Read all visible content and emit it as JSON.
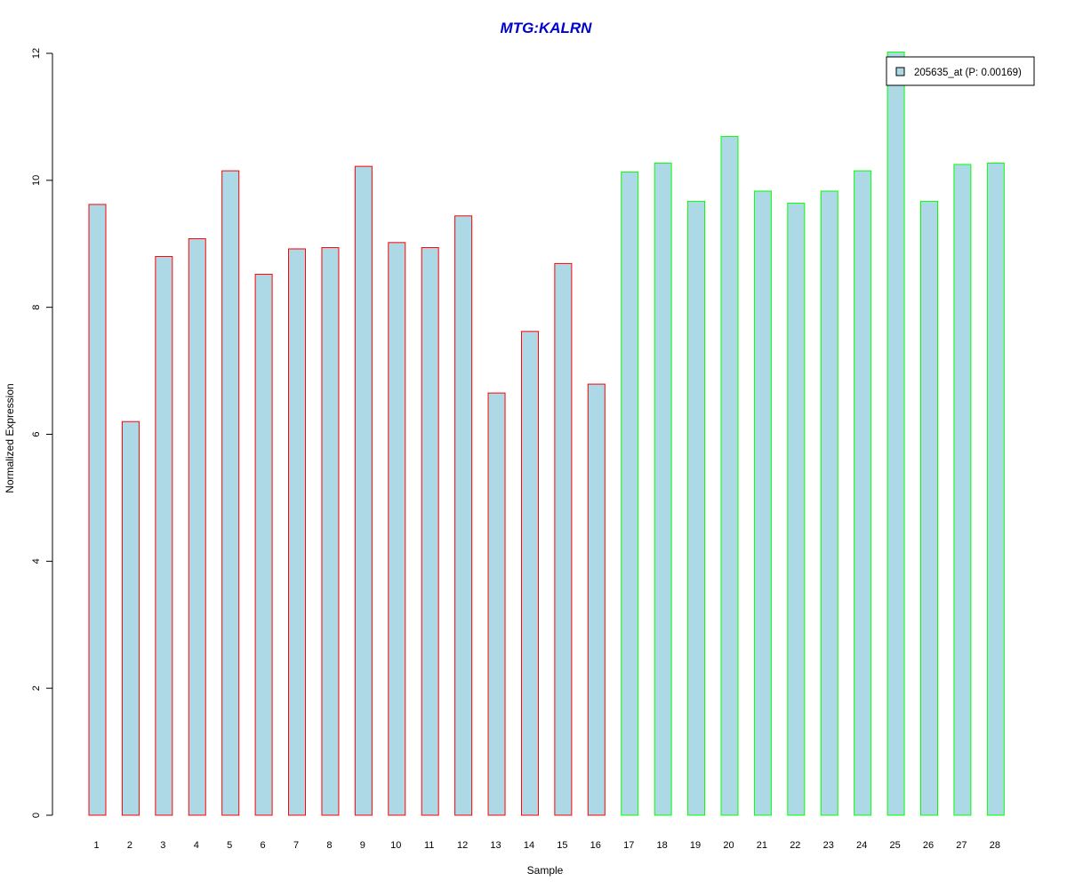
{
  "chart_data": {
    "type": "bar",
    "title": "MTG:KALRN",
    "xlabel": "Sample",
    "ylabel": "Normalized Expression",
    "ylim": [
      0,
      12
    ],
    "yticks": [
      0,
      2,
      4,
      6,
      8,
      10,
      12
    ],
    "grid": false,
    "legend": {
      "position": "top-right",
      "entries": [
        {
          "label": "205635_at (P: 0.00169)",
          "fill": "#add8e6"
        }
      ]
    },
    "categories": [
      "1",
      "2",
      "3",
      "4",
      "5",
      "6",
      "7",
      "8",
      "9",
      "10",
      "11",
      "12",
      "13",
      "14",
      "15",
      "16",
      "17",
      "18",
      "19",
      "20",
      "21",
      "22",
      "23",
      "24",
      "25",
      "26",
      "27",
      "28"
    ],
    "values": [
      9.62,
      6.2,
      8.8,
      9.08,
      10.15,
      8.52,
      8.92,
      8.94,
      10.22,
      9.02,
      8.94,
      9.44,
      6.65,
      7.62,
      8.69,
      6.79,
      10.13,
      10.27,
      9.67,
      10.69,
      9.83,
      9.64,
      9.83,
      10.15,
      12.02,
      9.67,
      10.25,
      10.27
    ],
    "groups": [
      1,
      1,
      1,
      1,
      1,
      1,
      1,
      1,
      1,
      1,
      1,
      1,
      1,
      1,
      1,
      1,
      2,
      2,
      2,
      2,
      2,
      2,
      2,
      2,
      2,
      2,
      2,
      2
    ],
    "colors": {
      "bar_fill": "#add8e6",
      "group1_border": "#ff0000",
      "group2_border": "#00ff00",
      "title": "#0000cc",
      "axis": "#000000"
    }
  }
}
